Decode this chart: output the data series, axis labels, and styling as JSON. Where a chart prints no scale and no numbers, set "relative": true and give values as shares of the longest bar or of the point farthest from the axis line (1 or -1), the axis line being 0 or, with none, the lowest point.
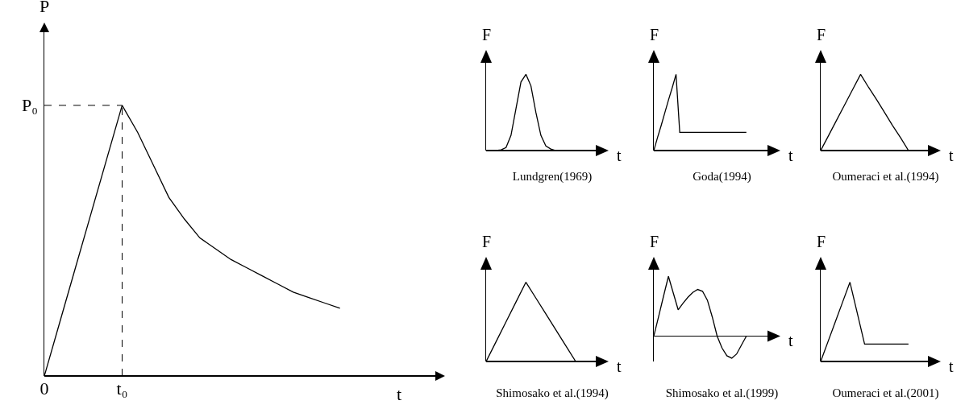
{
  "chart_data": [
    {
      "type": "line",
      "relative": true,
      "xlabel": "t",
      "ylabel": "P",
      "tick_labels": "x",
      "categories": [
        "0",
        null,
        null,
        null,
        null,
        "t₀",
        null,
        null,
        null,
        null,
        null,
        null,
        null,
        null,
        null,
        null,
        null,
        null,
        null,
        null
      ],
      "values": [
        0,
        0.2,
        0.4,
        0.6,
        0.8,
        1,
        0.9,
        0.78,
        0.66,
        0.58,
        0.51,
        0.47,
        0.43,
        0.4,
        0.37,
        0.34,
        0.31,
        0.29,
        0.27,
        0.25
      ],
      "color": "#000000",
      "annotations": [
        "P₀"
      ]
    },
    {
      "type": "line",
      "relative": true,
      "title": "Lundgren(1969)",
      "xlabel": "t",
      "ylabel": "F",
      "tick_labels": false,
      "categories": [
        null,
        null,
        null,
        null,
        null,
        null,
        null,
        null,
        null,
        null,
        null,
        null,
        null,
        null,
        null,
        null,
        null,
        null,
        null
      ],
      "values": [
        0,
        0,
        0,
        0.01,
        0.04,
        0.2,
        0.55,
        0.9,
        1,
        0.85,
        0.5,
        0.2,
        0.06,
        0.02,
        0,
        0,
        0,
        0,
        0
      ],
      "color": "#000000"
    },
    {
      "type": "line",
      "relative": true,
      "title": "Goda(1994)",
      "xlabel": "t",
      "ylabel": "F",
      "tick_labels": false,
      "categories": [
        null,
        null,
        null,
        null,
        null,
        null,
        null,
        null,
        null,
        null,
        null,
        null,
        null,
        null,
        null,
        null,
        null,
        null,
        null,
        null,
        null,
        null,
        null,
        null,
        null,
        null
      ],
      "values": [
        0,
        0.17,
        0.33,
        0.5,
        0.67,
        0.83,
        1,
        0.24,
        0.24,
        0.24,
        0.24,
        0.24,
        0.24,
        0.24,
        0.24,
        0.24,
        0.24,
        0.24,
        0.24,
        0.24,
        0.24,
        0.24,
        0.24,
        0.24,
        0.24,
        0.24
      ],
      "color": "#000000"
    },
    {
      "type": "line",
      "relative": true,
      "title": "Oumeraci et al.(1994)",
      "xlabel": "t",
      "ylabel": "F",
      "tick_labels": false,
      "categories": [
        null,
        null,
        null,
        null,
        null,
        null,
        null,
        null,
        null,
        null,
        null,
        null
      ],
      "values": [
        0,
        0.2,
        0.4,
        0.6,
        0.8,
        1,
        0.83,
        0.67,
        0.5,
        0.33,
        0.17,
        0
      ],
      "color": "#000000"
    },
    {
      "type": "line",
      "relative": true,
      "title": "Shimosako et al.(1994)",
      "xlabel": "t",
      "ylabel": "F",
      "tick_labels": false,
      "categories": [
        null,
        null,
        null,
        null,
        null,
        null,
        null,
        null,
        null,
        null
      ],
      "values": [
        0,
        0.25,
        0.5,
        0.75,
        1,
        0.8,
        0.6,
        0.4,
        0.2,
        0
      ],
      "color": "#000000"
    },
    {
      "type": "line",
      "relative": true,
      "title": "Shimosako et al.(1999)",
      "xlabel": "t",
      "ylabel": "F",
      "tick_labels": false,
      "categories": [
        null,
        null,
        null,
        null,
        null,
        null,
        null,
        null,
        null,
        null,
        null,
        null,
        null,
        null,
        null,
        null,
        null,
        null,
        null,
        null
      ],
      "values": [
        0,
        0.33,
        0.67,
        1,
        0.72,
        0.44,
        0.55,
        0.65,
        0.73,
        0.78,
        0.75,
        0.6,
        0.32,
        0,
        -0.2,
        -0.33,
        -0.37,
        -0.3,
        -0.15,
        0
      ],
      "color": "#000000"
    },
    {
      "type": "line",
      "relative": true,
      "title": "Oumeraci et al.(2001)",
      "xlabel": "t",
      "ylabel": "F",
      "tick_labels": false,
      "categories": [
        null,
        null,
        null,
        null,
        null,
        null,
        null,
        null,
        null,
        null,
        null,
        null,
        null
      ],
      "values": [
        0,
        0.25,
        0.5,
        0.75,
        1,
        0.61,
        0.22,
        0.22,
        0.22,
        0.22,
        0.22,
        0.22,
        0.22
      ],
      "color": "#000000"
    }
  ]
}
